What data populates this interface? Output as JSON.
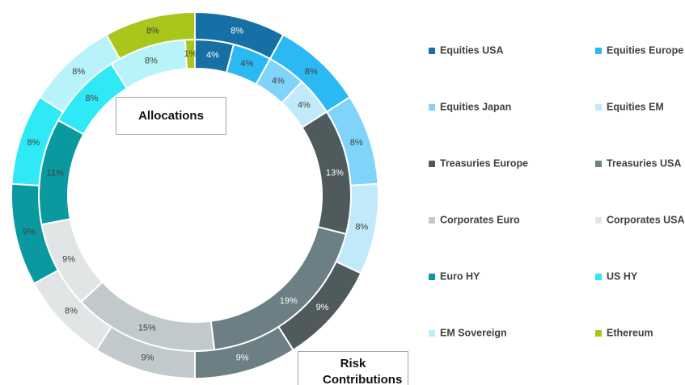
{
  "chart_data": {
    "type": "donut",
    "categories": [
      "Equities USA",
      "Equities Europe",
      "Equities Japan",
      "Equities EM",
      "Treasuries Europe",
      "Treasuries USA",
      "Corporates Euro",
      "Corporates USA",
      "Euro HY",
      "US HY",
      "EM Sovereign",
      "Ethereum"
    ],
    "colors": [
      "#1670a6",
      "#2bb9f4",
      "#80d3f9",
      "#c0e9fa",
      "#4e5a5c",
      "#6c7f84",
      "#c1c9cc",
      "#e1e5e6",
      "#0a999f",
      "#30e9f6",
      "#b7f3f8",
      "#a9c61b"
    ],
    "series": [
      {
        "name": "Allocations",
        "values": [
          4,
          4,
          4,
          4,
          13,
          19,
          15,
          9,
          11,
          8,
          8,
          1
        ],
        "value_labels": [
          "4%",
          "4%",
          "4%",
          "4%",
          "13%",
          "19%",
          "15%",
          "9%",
          "11%",
          "8%",
          "8%",
          "1%"
        ]
      },
      {
        "name": "Risk Contributions",
        "values": [
          8,
          8,
          8,
          8,
          9,
          9,
          9,
          8,
          9,
          8,
          8,
          8
        ],
        "value_labels": [
          "8%",
          "8%",
          "8%",
          "8%",
          "9%",
          "9%",
          "9%",
          "8%",
          "9%",
          "8%",
          "8%",
          "8%"
        ]
      }
    ]
  }
}
